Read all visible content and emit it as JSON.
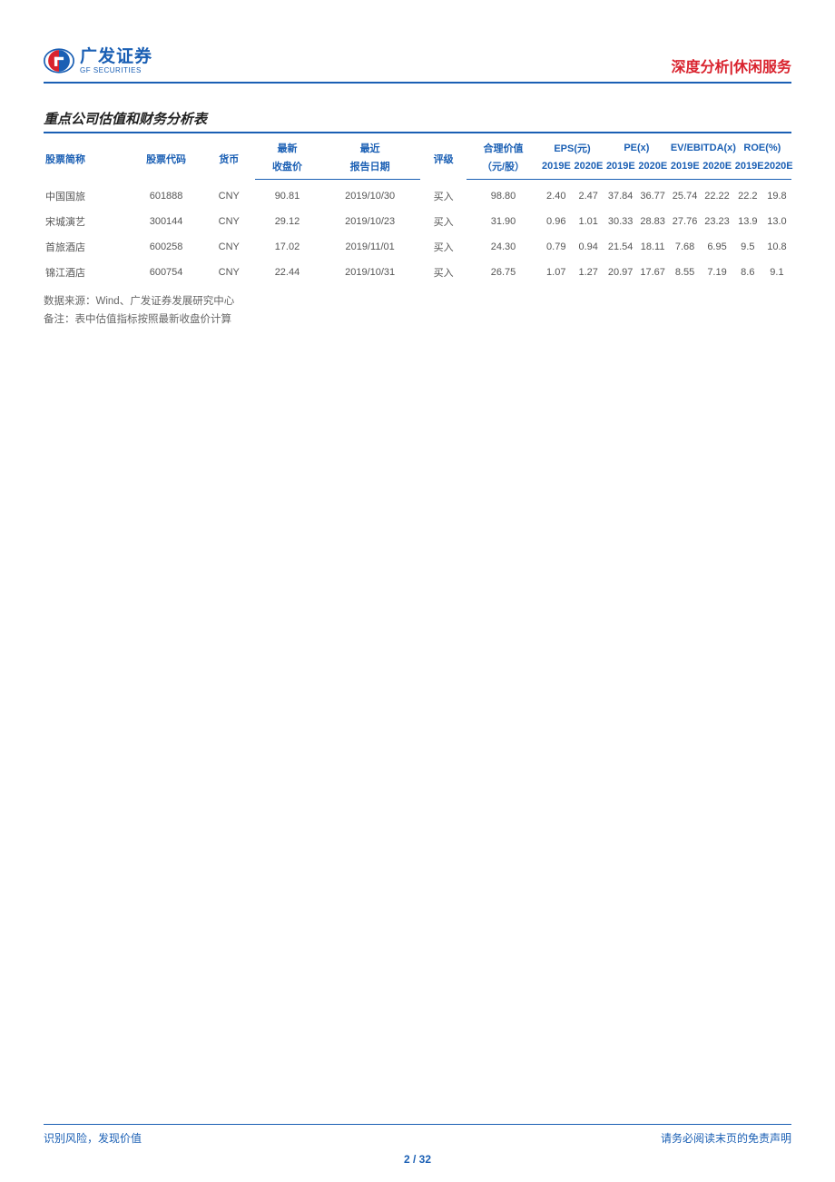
{
  "brand": {
    "name_cn": "广发证券",
    "name_en": "GF SECURITIES",
    "primary_color": "#1a5fb4",
    "accent_color": "#d9232e"
  },
  "doc_category": "深度分析|休闲服务",
  "section_title": "重点公司估值和财务分析表",
  "table": {
    "type": "table",
    "columns_top": {
      "name": "股票简称",
      "code": "股票代码",
      "ccy": "货币",
      "close_group": "最新",
      "date_group": "最近",
      "rating_span": "评级",
      "fair": "合理价值",
      "eps": "EPS(元)",
      "pe": "PE(x)",
      "ev": "EV/EBITDA(x)",
      "roe": "ROE(%)"
    },
    "columns_bottom": {
      "close": "收盘价",
      "date": "报告日期",
      "fair_unit": "（元/股）",
      "y19": "2019E",
      "y20": "2020E"
    },
    "rows": [
      {
        "name": "中国国旅",
        "code": "601888",
        "ccy": "CNY",
        "close": "90.81",
        "date": "2019/10/30",
        "rating": "买入",
        "fair": "98.80",
        "eps19": "2.40",
        "eps20": "2.47",
        "pe19": "37.84",
        "pe20": "36.77",
        "ev19": "25.74",
        "ev20": "22.22",
        "roe19": "22.2",
        "roe20": "19.8"
      },
      {
        "name": "宋城演艺",
        "code": "300144",
        "ccy": "CNY",
        "close": "29.12",
        "date": "2019/10/23",
        "rating": "买入",
        "fair": "31.90",
        "eps19": "0.96",
        "eps20": "1.01",
        "pe19": "30.33",
        "pe20": "28.83",
        "ev19": "27.76",
        "ev20": "23.23",
        "roe19": "13.9",
        "roe20": "13.0"
      },
      {
        "name": "首旅酒店",
        "code": "600258",
        "ccy": "CNY",
        "close": "17.02",
        "date": "2019/11/01",
        "rating": "买入",
        "fair": "24.30",
        "eps19": "0.79",
        "eps20": "0.94",
        "pe19": "21.54",
        "pe20": "18.11",
        "ev19": "7.68",
        "ev20": "6.95",
        "roe19": "9.5",
        "roe20": "10.8"
      },
      {
        "name": "锦江酒店",
        "code": "600754",
        "ccy": "CNY",
        "close": "22.44",
        "date": "2019/10/31",
        "rating": "买入",
        "fair": "26.75",
        "eps19": "1.07",
        "eps20": "1.27",
        "pe19": "20.97",
        "pe20": "17.67",
        "ev19": "8.55",
        "ev20": "7.19",
        "roe19": "8.6",
        "roe20": "9.1"
      }
    ]
  },
  "notes": {
    "source": "数据来源：Wind、广发证券发展研究中心",
    "remark": "备注：表中估值指标按照最新收盘价计算"
  },
  "footer": {
    "left": "识别风险，发现价值",
    "right": "请务必阅读末页的免责声明",
    "page_current": "2",
    "page_sep": " / ",
    "page_total": "32"
  }
}
